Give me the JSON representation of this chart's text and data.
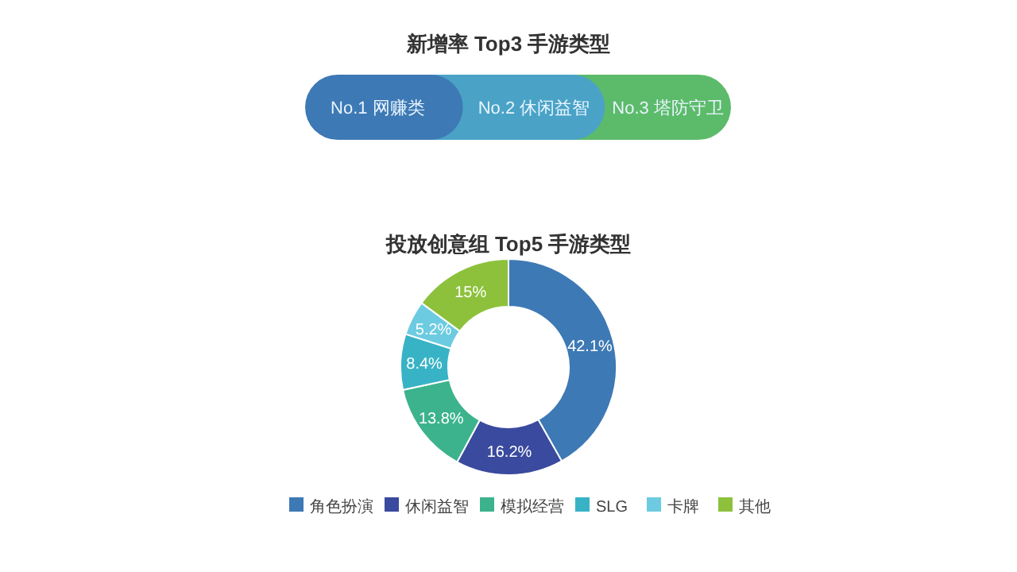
{
  "chart_data": [
    {
      "type": "other",
      "title": "新增率 Top3 手游类型",
      "categories": [
        "No.1 网赚类",
        "No.2 休闲益智",
        "No.3 塔防守卫"
      ],
      "colors": [
        "#3d79b4",
        "#4aa3c6",
        "#5cbb6a"
      ]
    },
    {
      "type": "donut",
      "title": "投放创意组 Top5 手游类型",
      "categories": [
        "角色扮演",
        "休闲益智",
        "模拟经营",
        "SLG",
        "卡牌",
        "其他"
      ],
      "values": [
        42.1,
        16.2,
        13.8,
        8.4,
        5.2,
        15
      ],
      "value_labels": [
        "42.1%",
        "16.2%",
        "13.8%",
        "8.4%",
        "5.2%",
        "15%"
      ],
      "colors": [
        "#3d79b4",
        "#3a4a9e",
        "#3cb38c",
        "#38b3c6",
        "#6ccbe0",
        "#8dc13c"
      ],
      "legend": "bottom"
    }
  ]
}
